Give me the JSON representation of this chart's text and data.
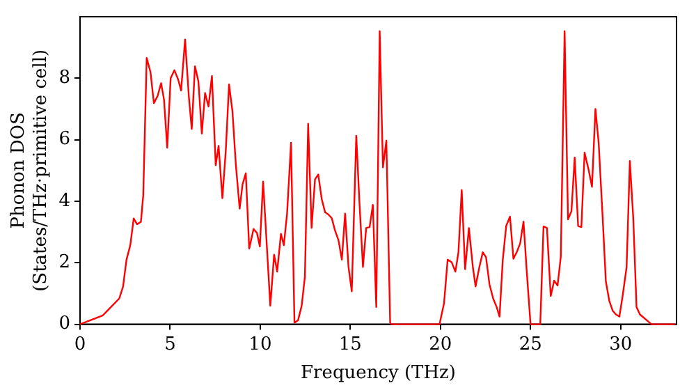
{
  "chart_data": {
    "type": "line",
    "xlabel": "Frequency (THz)",
    "ylabel": "Phonon DOS\n(States/THz·primitive cell)",
    "xlim": [
      0,
      33.1
    ],
    "ylim": [
      0,
      10
    ],
    "xticks": [
      0,
      5,
      10,
      15,
      20,
      25,
      30
    ],
    "yticks": [
      0,
      2,
      4,
      6,
      8
    ],
    "grid": false,
    "legend": false,
    "marker": "none",
    "line_style": "solid",
    "series": [
      {
        "color": "#ff0000",
        "x": [
          0,
          1.25,
          1.52,
          2.18,
          2.39,
          2.58,
          2.79,
          2.98,
          3.17,
          3.38,
          3.51,
          3.7,
          3.91,
          4.1,
          4.31,
          4.5,
          4.66,
          4.84,
          5.03,
          5.24,
          5.45,
          5.61,
          5.83,
          6.04,
          6.2,
          6.38,
          6.57,
          6.76,
          6.94,
          7.13,
          7.32,
          7.53,
          7.69,
          7.9,
          8.09,
          8.27,
          8.46,
          8.65,
          8.86,
          9.02,
          9.2,
          9.39,
          9.63,
          9.82,
          9.98,
          10.16,
          10.56,
          10.77,
          10.94,
          11.15,
          11.31,
          11.49,
          11.71,
          11.9,
          12.1,
          12.3,
          12.48,
          12.66,
          12.85,
          13.04,
          13.22,
          13.41,
          13.6,
          13.78,
          13.97,
          14.15,
          14.34,
          14.53,
          14.71,
          14.9,
          15.08,
          15.33,
          15.51,
          15.7,
          15.88,
          16.07,
          16.25,
          16.44,
          16.63,
          16.81,
          17.0,
          17.21,
          17.27,
          19.95,
          20.2,
          20.4,
          20.62,
          20.83,
          21.0,
          21.18,
          21.37,
          21.58,
          21.8,
          21.95,
          22.16,
          22.35,
          22.53,
          22.72,
          22.93,
          23.12,
          23.28,
          23.46,
          23.65,
          23.86,
          24.05,
          24.23,
          24.42,
          24.61,
          24.79,
          25.0,
          25.54,
          25.72,
          25.91,
          26.12,
          26.31,
          26.5,
          26.68,
          26.89,
          27.08,
          27.27,
          27.45,
          27.64,
          27.82,
          28.0,
          28.22,
          28.41,
          28.6,
          28.78,
          28.99,
          29.18,
          29.37,
          29.56,
          29.74,
          29.93,
          30.11,
          30.33,
          30.51,
          30.7,
          30.88,
          31.07,
          31.45,
          31.71,
          33.04
        ],
        "values": [
          0,
          0.28,
          0.44,
          0.84,
          1.23,
          2.1,
          2.57,
          3.44,
          3.25,
          3.33,
          4.2,
          8.66,
          8.2,
          7.19,
          7.43,
          7.84,
          7.31,
          5.74,
          8.0,
          8.26,
          7.95,
          7.6,
          9.26,
          7.4,
          6.35,
          8.39,
          7.9,
          6.2,
          7.52,
          7.08,
          8.07,
          5.17,
          5.8,
          4.1,
          5.65,
          7.8,
          6.92,
          5.17,
          3.76,
          4.55,
          4.91,
          2.46,
          3.1,
          2.97,
          2.53,
          4.64,
          0.6,
          2.26,
          1.71,
          2.94,
          2.57,
          3.6,
          5.9,
          0.05,
          0.13,
          0.6,
          1.55,
          6.52,
          3.13,
          4.71,
          4.87,
          4.08,
          3.64,
          3.57,
          3.45,
          3.05,
          2.74,
          2.1,
          3.6,
          1.86,
          1.07,
          6.13,
          3.92,
          1.86,
          3.13,
          3.16,
          3.88,
          0.56,
          9.53,
          5.1,
          5.97,
          0.05,
          0,
          0,
          0.68,
          2.1,
          2.02,
          1.71,
          2.34,
          4.36,
          1.79,
          3.13,
          1.86,
          1.23,
          1.86,
          2.34,
          2.18,
          1.3,
          0.83,
          0.56,
          0.25,
          2.1,
          3.2,
          3.5,
          2.13,
          2.34,
          2.62,
          3.34,
          1.71,
          0,
          0,
          3.18,
          3.13,
          0.92,
          1.42,
          1.26,
          2.2,
          9.53,
          3.41,
          3.68,
          5.42,
          3.2,
          3.16,
          5.58,
          5.03,
          4.47,
          7.0,
          5.9,
          3.6,
          1.39,
          0.76,
          0.44,
          0.32,
          0.25,
          0.92,
          1.86,
          5.31,
          3.45,
          0.56,
          0.32,
          0.13,
          0,
          0
        ]
      }
    ]
  }
}
